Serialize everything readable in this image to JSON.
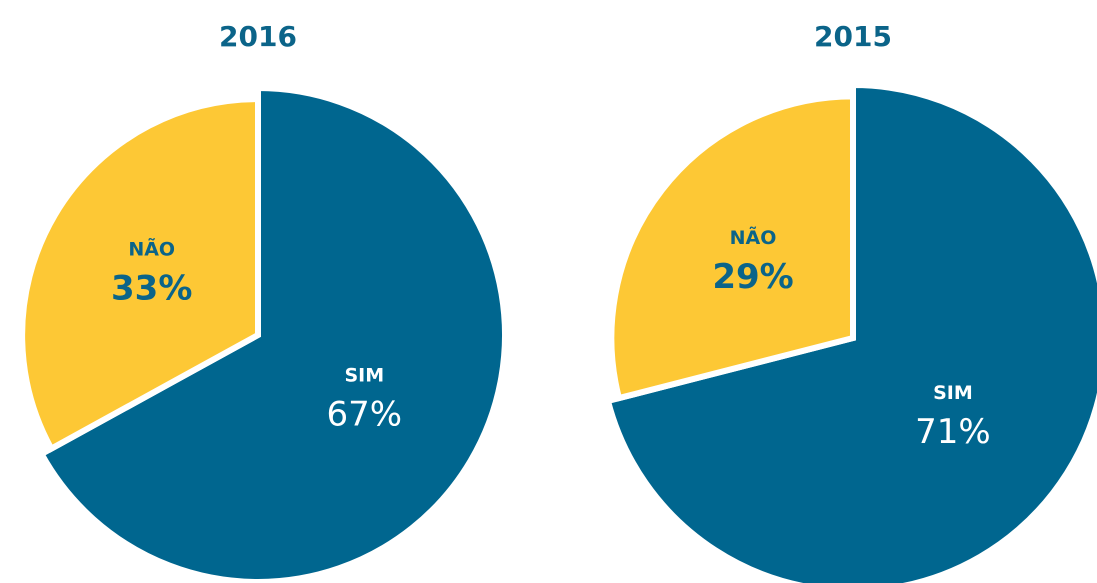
{
  "chart_data": [
    {
      "type": "pie",
      "title": "2016",
      "categories": [
        "SIM",
        "NÃO"
      ],
      "values": [
        67,
        33
      ],
      "value_labels": [
        "67%",
        "33%"
      ],
      "colors": [
        "#00668f",
        "#fdc835"
      ]
    },
    {
      "type": "pie",
      "title": "2015",
      "categories": [
        "SIM",
        "NÃO"
      ],
      "values": [
        71,
        29
      ],
      "value_labels": [
        "71%",
        "29%"
      ],
      "colors": [
        "#00668f",
        "#fdc835"
      ]
    }
  ]
}
